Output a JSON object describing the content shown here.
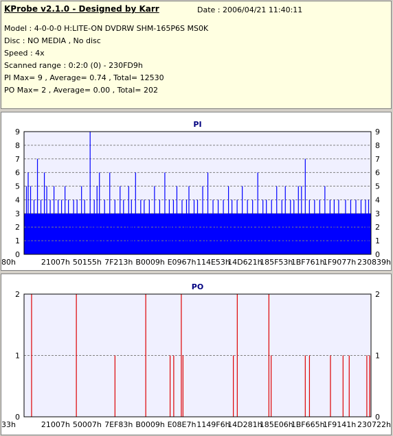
{
  "header": {
    "title": "KProbe v2.1.0 - Designed by Karr",
    "date": "Date : 2006/04/21 11:40:11",
    "model": "Model : 4-0-0-0 H:LITE-ON DVDRW SHM-165P6S MS0K",
    "disc": "Disc : NO MEDIA , No disc",
    "speed": "Speed : 4x",
    "scanned_range": "Scanned range : 0:2:0 (0) - 230FD9h",
    "pi_stats": "PI Max= 9 , Average= 0.74 , Total= 12530",
    "po_stats": "PO Max= 2 , Average= 0.00 , Total= 202"
  },
  "colors": {
    "pi": "#0000ff",
    "po": "#dd0000",
    "plot_bg": "#f0f0ff",
    "grid": "#808080"
  },
  "chart_data": [
    {
      "type": "bar",
      "title": "PI",
      "ylim": [
        0,
        9
      ],
      "yticks": [
        "0",
        "1",
        "2",
        "3",
        "4",
        "5",
        "6",
        "7",
        "8",
        "9"
      ],
      "xticks": [
        "80h",
        "21007h",
        "50155h",
        "7F213h",
        "B0009h",
        "E0967h",
        "114E53h",
        "14D621h",
        "185F53h",
        "1BF761h",
        "1F9077h",
        "230839h"
      ],
      "grid": true,
      "baseline": 3,
      "values": [
        {
          "x": 0.003,
          "y": 5
        },
        {
          "x": 0.008,
          "y": 6
        },
        {
          "x": 0.015,
          "y": 5
        },
        {
          "x": 0.025,
          "y": 4
        },
        {
          "x": 0.035,
          "y": 7
        },
        {
          "x": 0.045,
          "y": 4
        },
        {
          "x": 0.055,
          "y": 6
        },
        {
          "x": 0.062,
          "y": 5
        },
        {
          "x": 0.072,
          "y": 4
        },
        {
          "x": 0.083,
          "y": 5
        },
        {
          "x": 0.095,
          "y": 4
        },
        {
          "x": 0.105,
          "y": 4
        },
        {
          "x": 0.115,
          "y": 5
        },
        {
          "x": 0.125,
          "y": 4
        },
        {
          "x": 0.14,
          "y": 4
        },
        {
          "x": 0.15,
          "y": 4
        },
        {
          "x": 0.163,
          "y": 5
        },
        {
          "x": 0.172,
          "y": 4
        },
        {
          "x": 0.188,
          "y": 9
        },
        {
          "x": 0.2,
          "y": 4
        },
        {
          "x": 0.208,
          "y": 5
        },
        {
          "x": 0.215,
          "y": 6
        },
        {
          "x": 0.23,
          "y": 4
        },
        {
          "x": 0.245,
          "y": 6
        },
        {
          "x": 0.26,
          "y": 4
        },
        {
          "x": 0.275,
          "y": 5
        },
        {
          "x": 0.285,
          "y": 4
        },
        {
          "x": 0.3,
          "y": 5
        },
        {
          "x": 0.308,
          "y": 4
        },
        {
          "x": 0.32,
          "y": 6
        },
        {
          "x": 0.335,
          "y": 4
        },
        {
          "x": 0.345,
          "y": 4
        },
        {
          "x": 0.36,
          "y": 4
        },
        {
          "x": 0.375,
          "y": 5
        },
        {
          "x": 0.39,
          "y": 4
        },
        {
          "x": 0.405,
          "y": 6
        },
        {
          "x": 0.418,
          "y": 4
        },
        {
          "x": 0.43,
          "y": 4
        },
        {
          "x": 0.44,
          "y": 5
        },
        {
          "x": 0.455,
          "y": 4
        },
        {
          "x": 0.468,
          "y": 4
        },
        {
          "x": 0.475,
          "y": 5
        },
        {
          "x": 0.49,
          "y": 4
        },
        {
          "x": 0.5,
          "y": 4
        },
        {
          "x": 0.515,
          "y": 5
        },
        {
          "x": 0.53,
          "y": 6
        },
        {
          "x": 0.545,
          "y": 4
        },
        {
          "x": 0.56,
          "y": 4
        },
        {
          "x": 0.575,
          "y": 4
        },
        {
          "x": 0.59,
          "y": 5
        },
        {
          "x": 0.6,
          "y": 4
        },
        {
          "x": 0.615,
          "y": 4
        },
        {
          "x": 0.63,
          "y": 5
        },
        {
          "x": 0.645,
          "y": 4
        },
        {
          "x": 0.66,
          "y": 4
        },
        {
          "x": 0.675,
          "y": 6
        },
        {
          "x": 0.69,
          "y": 4
        },
        {
          "x": 0.7,
          "y": 4
        },
        {
          "x": 0.715,
          "y": 4
        },
        {
          "x": 0.73,
          "y": 5
        },
        {
          "x": 0.745,
          "y": 4
        },
        {
          "x": 0.755,
          "y": 5
        },
        {
          "x": 0.77,
          "y": 4
        },
        {
          "x": 0.78,
          "y": 4
        },
        {
          "x": 0.793,
          "y": 5
        },
        {
          "x": 0.802,
          "y": 5
        },
        {
          "x": 0.813,
          "y": 7
        },
        {
          "x": 0.825,
          "y": 4
        },
        {
          "x": 0.84,
          "y": 4
        },
        {
          "x": 0.855,
          "y": 4
        },
        {
          "x": 0.87,
          "y": 5
        },
        {
          "x": 0.885,
          "y": 4
        },
        {
          "x": 0.897,
          "y": 4
        },
        {
          "x": 0.91,
          "y": 4
        },
        {
          "x": 0.93,
          "y": 4
        },
        {
          "x": 0.945,
          "y": 4
        },
        {
          "x": 0.96,
          "y": 4
        },
        {
          "x": 0.975,
          "y": 4
        },
        {
          "x": 0.988,
          "y": 4
        },
        {
          "x": 0.997,
          "y": 4
        }
      ]
    },
    {
      "type": "bar",
      "title": "PO",
      "ylim": [
        0,
        2
      ],
      "yticks": [
        "0",
        "1",
        "2"
      ],
      "xticks": [
        "33h",
        "21007h",
        "50007h",
        "7EF83h",
        "B0009h",
        "E08E7h",
        "1149F6h",
        "14D281h",
        "185E06h",
        "1BF665h",
        "1F9141h",
        "230722h"
      ],
      "grid": true,
      "values": [
        {
          "x": 0.022,
          "y": 2
        },
        {
          "x": 0.182,
          "y": 2
        },
        {
          "x": 0.32,
          "y": 1
        },
        {
          "x": 0.43,
          "y": 2
        },
        {
          "x": 0.517,
          "y": 1
        },
        {
          "x": 0.53,
          "y": 1
        },
        {
          "x": 0.557,
          "y": 2
        },
        {
          "x": 0.563,
          "y": 1
        },
        {
          "x": 0.743,
          "y": 1
        },
        {
          "x": 0.757,
          "y": 2
        },
        {
          "x": 0.87,
          "y": 2
        },
        {
          "x": 0.878,
          "y": 1
        },
        {
          "x": 1.0,
          "y": 1
        },
        {
          "x": 1.015,
          "y": 1
        },
        {
          "x": 1.09,
          "y": 1
        },
        {
          "x": 1.135,
          "y": 1
        },
        {
          "x": 1.157,
          "y": 1
        },
        {
          "x": 1.22,
          "y": 1
        },
        {
          "x": 1.23,
          "y": 1
        }
      ]
    }
  ]
}
